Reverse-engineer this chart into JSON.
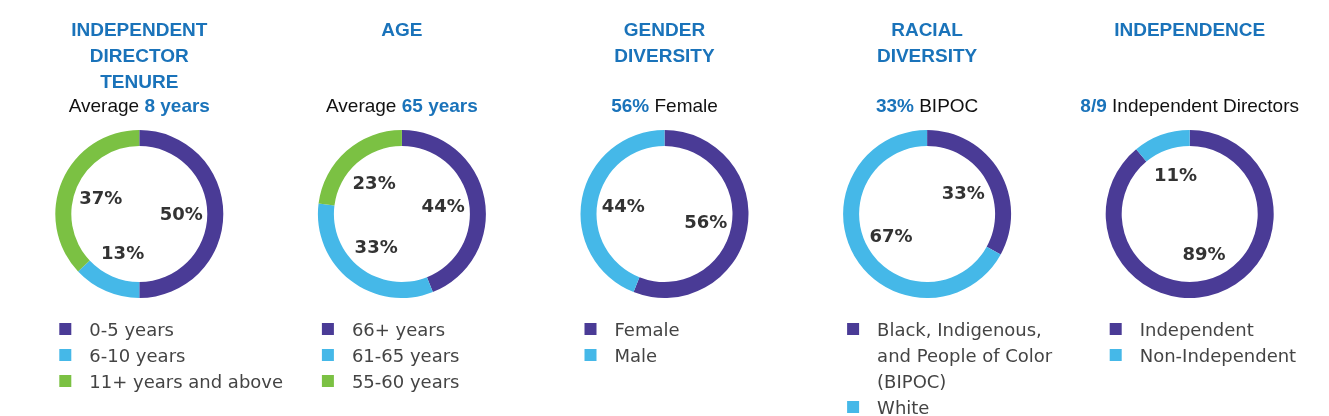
{
  "chart_data": [
    {
      "type": "donut",
      "title": "INDEPENDENT DIRECTOR TENURE",
      "subtitle": "Average 8 years",
      "categories": [
        "0-5 years",
        "6-10 years",
        "11+ years and above"
      ],
      "values": [
        50,
        13,
        37
      ],
      "colors": [
        "#4a3b96",
        "#45b8e8",
        "#7bc143"
      ],
      "value_labels": [
        "50%",
        "13%",
        "37%"
      ],
      "legend": "bottom"
    },
    {
      "type": "donut",
      "title": "AGE",
      "subtitle": "Average 65 years",
      "categories": [
        "66+ years",
        "61-65 years",
        "55-60 years"
      ],
      "values": [
        44,
        33,
        23
      ],
      "colors": [
        "#4a3b96",
        "#45b8e8",
        "#7bc143"
      ],
      "value_labels": [
        "44%",
        "33%",
        "23%"
      ],
      "legend": "bottom"
    },
    {
      "type": "donut",
      "title": "GENDER DIVERSITY",
      "subtitle": "56% Female",
      "categories": [
        "Female",
        "Male"
      ],
      "values": [
        56,
        44
      ],
      "colors": [
        "#4a3b96",
        "#45b8e8"
      ],
      "value_labels": [
        "56%",
        "44%"
      ],
      "legend": "bottom"
    },
    {
      "type": "donut",
      "title": "RACIAL DIVERSITY",
      "subtitle": "33% BIPOC",
      "categories": [
        "Black, Indigenous, and People of Color (BIPOC)",
        "White"
      ],
      "values": [
        33,
        67
      ],
      "colors": [
        "#4a3b96",
        "#45b8e8"
      ],
      "value_labels": [
        "33%",
        "67%"
      ],
      "legend": "bottom"
    },
    {
      "type": "donut",
      "title": "INDEPENDENCE",
      "subtitle": "8/9 Independent Directors",
      "categories": [
        "Independent",
        "Non-Independent"
      ],
      "values": [
        89,
        11
      ],
      "colors": [
        "#4a3b96",
        "#45b8e8"
      ],
      "value_labels": [
        "89%",
        "11%"
      ],
      "legend": "bottom"
    }
  ]
}
